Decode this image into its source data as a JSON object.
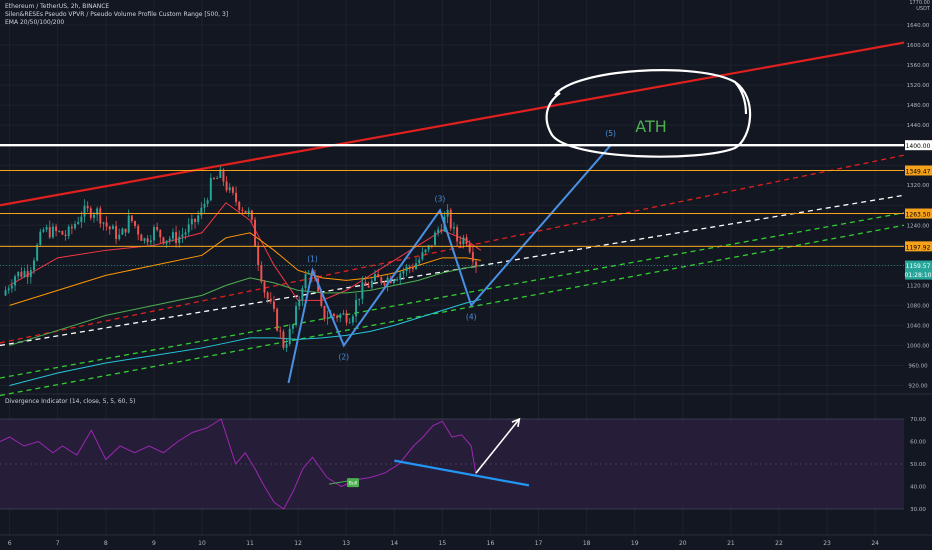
{
  "header": {
    "symbol_line": "Ethereum / TetherUS, 2h, BINANCE",
    "indicator_1": "Silen&RESEs Pseudo VPVR / Pseudo Volume Profile Custom Range [500, 3]",
    "indicator_2": "EMA 20/50/100/200"
  },
  "top_right_label": "1770.00\nUSDT",
  "annotation": {
    "text": "ATH"
  },
  "wave_labels": [
    "(1)",
    "(2)",
    "(3)",
    "(4)",
    "(5)"
  ],
  "oscillator": {
    "title": "Divergence Indicator (14, close, 5, 5, 60, 5)",
    "bull_label": "Bull",
    "y_ticks": [
      "70.00",
      "60.00",
      "50.00",
      "40.00",
      "30.00"
    ]
  },
  "colors": {
    "background": "#131722",
    "up_candle": "#26a69a",
    "down_candle": "#ef5350",
    "resistance_red": "#e0201e",
    "ath_level": "#ffffff",
    "orange_level": "#f7a21b",
    "wave_blue": "#4a90e2",
    "rsi_line": "#9c27b0",
    "rsi_fill": "#2a1e3d",
    "divergence_blue": "#2196f3",
    "ath_text": "#4caf50"
  },
  "chart_data": {
    "type": "candlestick",
    "price_axis": {
      "ticks": [
        1640,
        1600,
        1560,
        1520,
        1480,
        1440,
        1400,
        1360,
        1320,
        1280,
        1240,
        1200,
        1160,
        1120,
        1080,
        1040,
        1000,
        960,
        920
      ],
      "labels": [
        "1640.00",
        "1600.00",
        "1560.00",
        "1520.00",
        "1480.00",
        "1440.00",
        "1400.00",
        "1349.47",
        "1320.00",
        "1263.50",
        "1240.00",
        "1197.92",
        "1159.57",
        "01:28:10",
        "1120.00",
        "1080.00",
        "1040.00",
        "1000.00",
        "960.00",
        "920.00"
      ],
      "ylim": [
        905,
        1690
      ]
    },
    "x_axis": {
      "labels": [
        "6",
        "7",
        "8",
        "9",
        "10",
        "11",
        "12",
        "13",
        "14",
        "15",
        "16",
        "17",
        "18",
        "19",
        "20",
        "21",
        "22",
        "23",
        "24"
      ],
      "xlim": [
        5.8,
        24.6
      ]
    },
    "horizontal_levels": [
      {
        "price": 1400.0,
        "label": "1400.00",
        "color": "#ffffff"
      },
      {
        "price": 1349.47,
        "label": "1349.47",
        "color": "#f7a21b"
      },
      {
        "price": 1263.5,
        "label": "1263.50",
        "color": "#f7a21b"
      },
      {
        "price": 1197.92,
        "label": "1197.92",
        "color": "#f7a21b"
      }
    ],
    "last_price": {
      "price": 1159.57,
      "label": "1159.57",
      "countdown": "01:28:10"
    },
    "trendlines": [
      {
        "x": [
          5.8,
          24.6
        ],
        "y": [
          1280,
          1605
        ],
        "color": "#e0201e",
        "style": "solid"
      },
      {
        "x": [
          5.8,
          24.6
        ],
        "y": [
          1005,
          1380
        ],
        "color": "#e0201e",
        "style": "dashed"
      },
      {
        "x": [
          5.8,
          24.6
        ],
        "y": [
          1000,
          1300
        ],
        "color": "#ffffff",
        "style": "dashed"
      },
      {
        "x": [
          5.8,
          24.6
        ],
        "y": [
          935,
          1265
        ],
        "color": "#32cd32",
        "style": "dashed"
      },
      {
        "x": [
          5.8,
          24.6
        ],
        "y": [
          900,
          1240
        ],
        "color": "#32cd32",
        "style": "dashed"
      }
    ],
    "elliott_wave": {
      "x": [
        11.8,
        12.3,
        12.95,
        14.95,
        15.6,
        18.5
      ],
      "y": [
        925,
        1150,
        1000,
        1270,
        1080,
        1400
      ],
      "labels": [
        "(1)",
        "(2)",
        "(3)",
        "(4)",
        "(5)"
      ]
    },
    "ema_series": [
      {
        "name": "EMA 20",
        "color": "#f23645",
        "x": [
          6,
          7,
          8,
          9,
          10,
          10.5,
          11,
          11.5,
          12,
          12.5,
          13,
          13.5,
          14,
          14.5,
          15,
          15.5,
          15.8
        ],
        "y": [
          1120,
          1175,
          1190,
          1200,
          1225,
          1285,
          1250,
          1160,
          1090,
          1090,
          1110,
          1140,
          1170,
          1200,
          1230,
          1210,
          1190
        ]
      },
      {
        "name": "EMA 50",
        "color": "#ff9800",
        "x": [
          6,
          7,
          8,
          9,
          10,
          10.5,
          11,
          11.5,
          12,
          12.5,
          13,
          13.5,
          14,
          14.5,
          15,
          15.5,
          15.8
        ],
        "y": [
          1080,
          1110,
          1140,
          1160,
          1180,
          1215,
          1225,
          1190,
          1150,
          1135,
          1130,
          1135,
          1145,
          1160,
          1175,
          1175,
          1170
        ]
      },
      {
        "name": "EMA 100",
        "color": "#4caf50",
        "x": [
          6,
          7,
          8,
          9,
          10,
          10.5,
          11,
          11.5,
          12,
          12.5,
          13,
          13.5,
          14,
          14.5,
          15,
          15.5,
          15.8
        ],
        "y": [
          1000,
          1030,
          1060,
          1080,
          1100,
          1120,
          1135,
          1125,
          1110,
          1105,
          1105,
          1110,
          1120,
          1130,
          1145,
          1155,
          1160
        ]
      },
      {
        "name": "EMA 200",
        "color": "#26c6da",
        "x": [
          6,
          7,
          8,
          9,
          10,
          10.5,
          11,
          11.5,
          12,
          12.5,
          13,
          13.5,
          14,
          14.5,
          15,
          15.5,
          15.8
        ],
        "y": [
          920,
          945,
          965,
          980,
          995,
          1005,
          1015,
          1015,
          1012,
          1015,
          1020,
          1028,
          1040,
          1055,
          1070,
          1085,
          1092
        ]
      }
    ],
    "candle_path": {
      "x": [
        5.85,
        6.1,
        6.4,
        6.7,
        7.0,
        7.2,
        7.5,
        7.8,
        8.0,
        8.3,
        8.5,
        8.8,
        9.0,
        9.2,
        9.5,
        9.8,
        10.0,
        10.2,
        10.4,
        10.6,
        10.8,
        11.0,
        11.15,
        11.3,
        11.5,
        11.7,
        11.9,
        12.1,
        12.3,
        12.5,
        12.7,
        12.9,
        13.1,
        13.3,
        13.6,
        13.9,
        14.1,
        14.4,
        14.7,
        14.9,
        15.1,
        15.3,
        15.5,
        15.7
      ],
      "y": [
        1100,
        1140,
        1150,
        1230,
        1225,
        1220,
        1265,
        1270,
        1240,
        1215,
        1255,
        1210,
        1230,
        1215,
        1215,
        1240,
        1270,
        1325,
        1340,
        1300,
        1280,
        1260,
        1180,
        1110,
        1060,
        1000,
        1040,
        1130,
        1150,
        1060,
        1060,
        1060,
        1060,
        1110,
        1130,
        1135,
        1145,
        1160,
        1190,
        1230,
        1260,
        1210,
        1215,
        1165
      ]
    },
    "rsi": {
      "ylim": [
        26,
        74
      ],
      "bands": [
        70,
        50,
        30
      ],
      "x": [
        5.8,
        6.0,
        6.3,
        6.6,
        6.9,
        7.1,
        7.4,
        7.7,
        8.0,
        8.3,
        8.6,
        8.9,
        9.2,
        9.5,
        9.8,
        10.1,
        10.4,
        10.7,
        10.9,
        11.1,
        11.3,
        11.5,
        11.7,
        11.9,
        12.1,
        12.3,
        12.6,
        12.9,
        13.2,
        13.5,
        13.8,
        14.1,
        14.4,
        14.6,
        14.8,
        15.0,
        15.2,
        15.4,
        15.6,
        15.7
      ],
      "y": [
        60,
        62,
        58,
        60,
        55,
        58,
        54,
        65,
        52,
        58,
        55,
        58,
        55,
        60,
        64,
        66,
        70,
        50,
        55,
        48,
        40,
        33,
        30,
        38,
        48,
        53,
        44,
        40,
        43,
        44,
        46,
        50,
        58,
        62,
        67,
        69,
        62,
        63,
        58,
        45
      ],
      "divergence_line": {
        "x": [
          14.0,
          16.8
        ],
        "y": [
          51.5,
          40.5
        ]
      },
      "arrow": {
        "x": [
          15.7,
          16.6
        ],
        "y": [
          46,
          70
        ]
      },
      "bull_point": {
        "x": 13.1,
        "y": 41.5
      }
    }
  }
}
